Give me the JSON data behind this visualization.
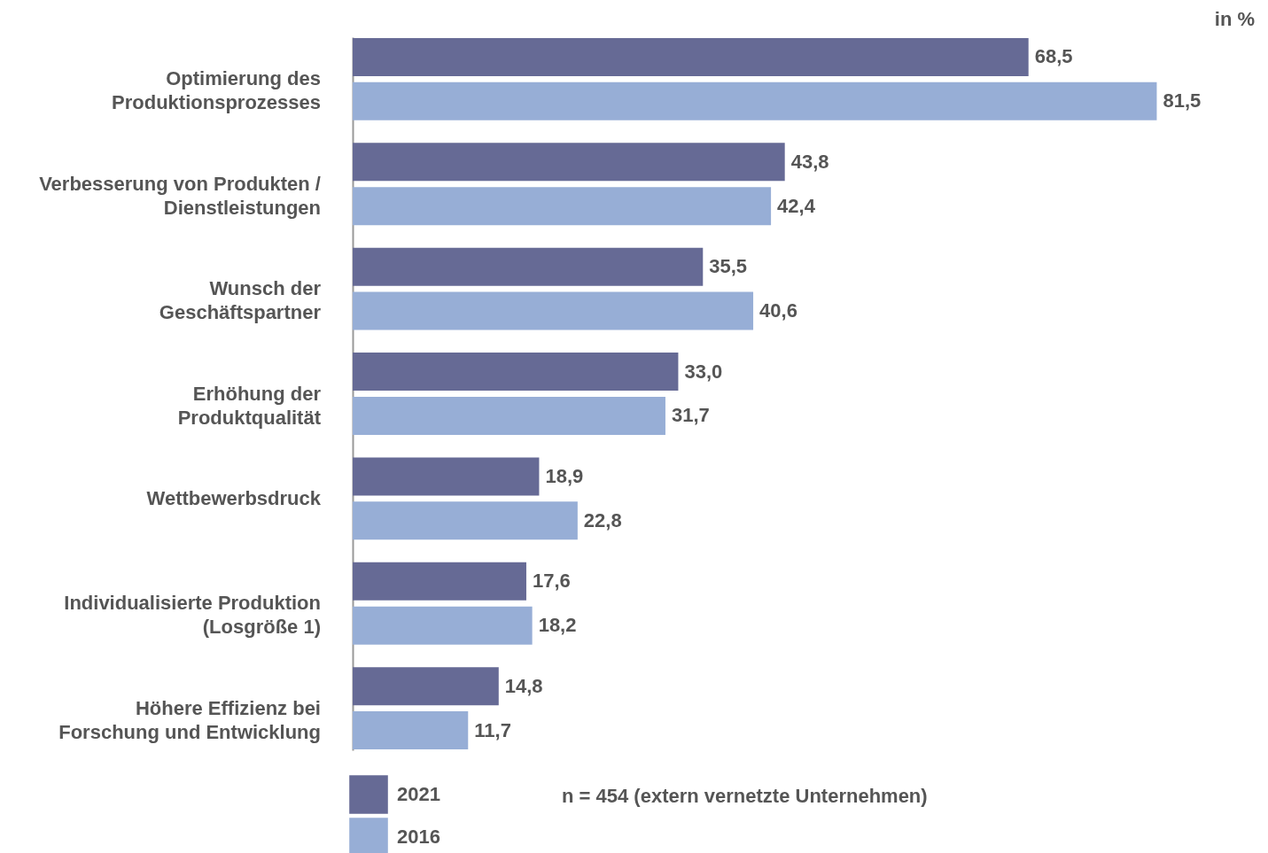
{
  "chart_data": {
    "type": "bar",
    "orientation": "horizontal",
    "categories": [
      "Optimierung des Produktionsprozesses",
      "Verbesserung von Produkten / Dienstleistungen",
      "Wunsch der Geschäftspartner",
      "Erhöhung der Produktqualität",
      "Wettbewerbsdruck",
      "Individualisierte Produktion (Losgröße 1)",
      "Höhere Effizienz bei Forschung und Entwicklung"
    ],
    "series": [
      {
        "name": "2021",
        "color": "#666a95",
        "values": [
          68.5,
          43.8,
          35.5,
          33.0,
          18.9,
          17.6,
          14.8
        ],
        "value_labels": [
          "68,5",
          "43,8",
          "35,5",
          "33,0",
          "18,9",
          "17,6",
          "14,8"
        ]
      },
      {
        "name": "2016",
        "color": "#97aed6",
        "values": [
          81.5,
          42.4,
          40.6,
          31.7,
          22.8,
          18.2,
          11.7
        ],
        "value_labels": [
          "81,5",
          "42,4",
          "40,6",
          "31,7",
          "22,8",
          "18,2",
          "11,7"
        ]
      }
    ],
    "legend": "bottom left",
    "annotations": [
      "in %",
      "n = 454 (extern vernetzte Unternehmen)"
    ]
  }
}
